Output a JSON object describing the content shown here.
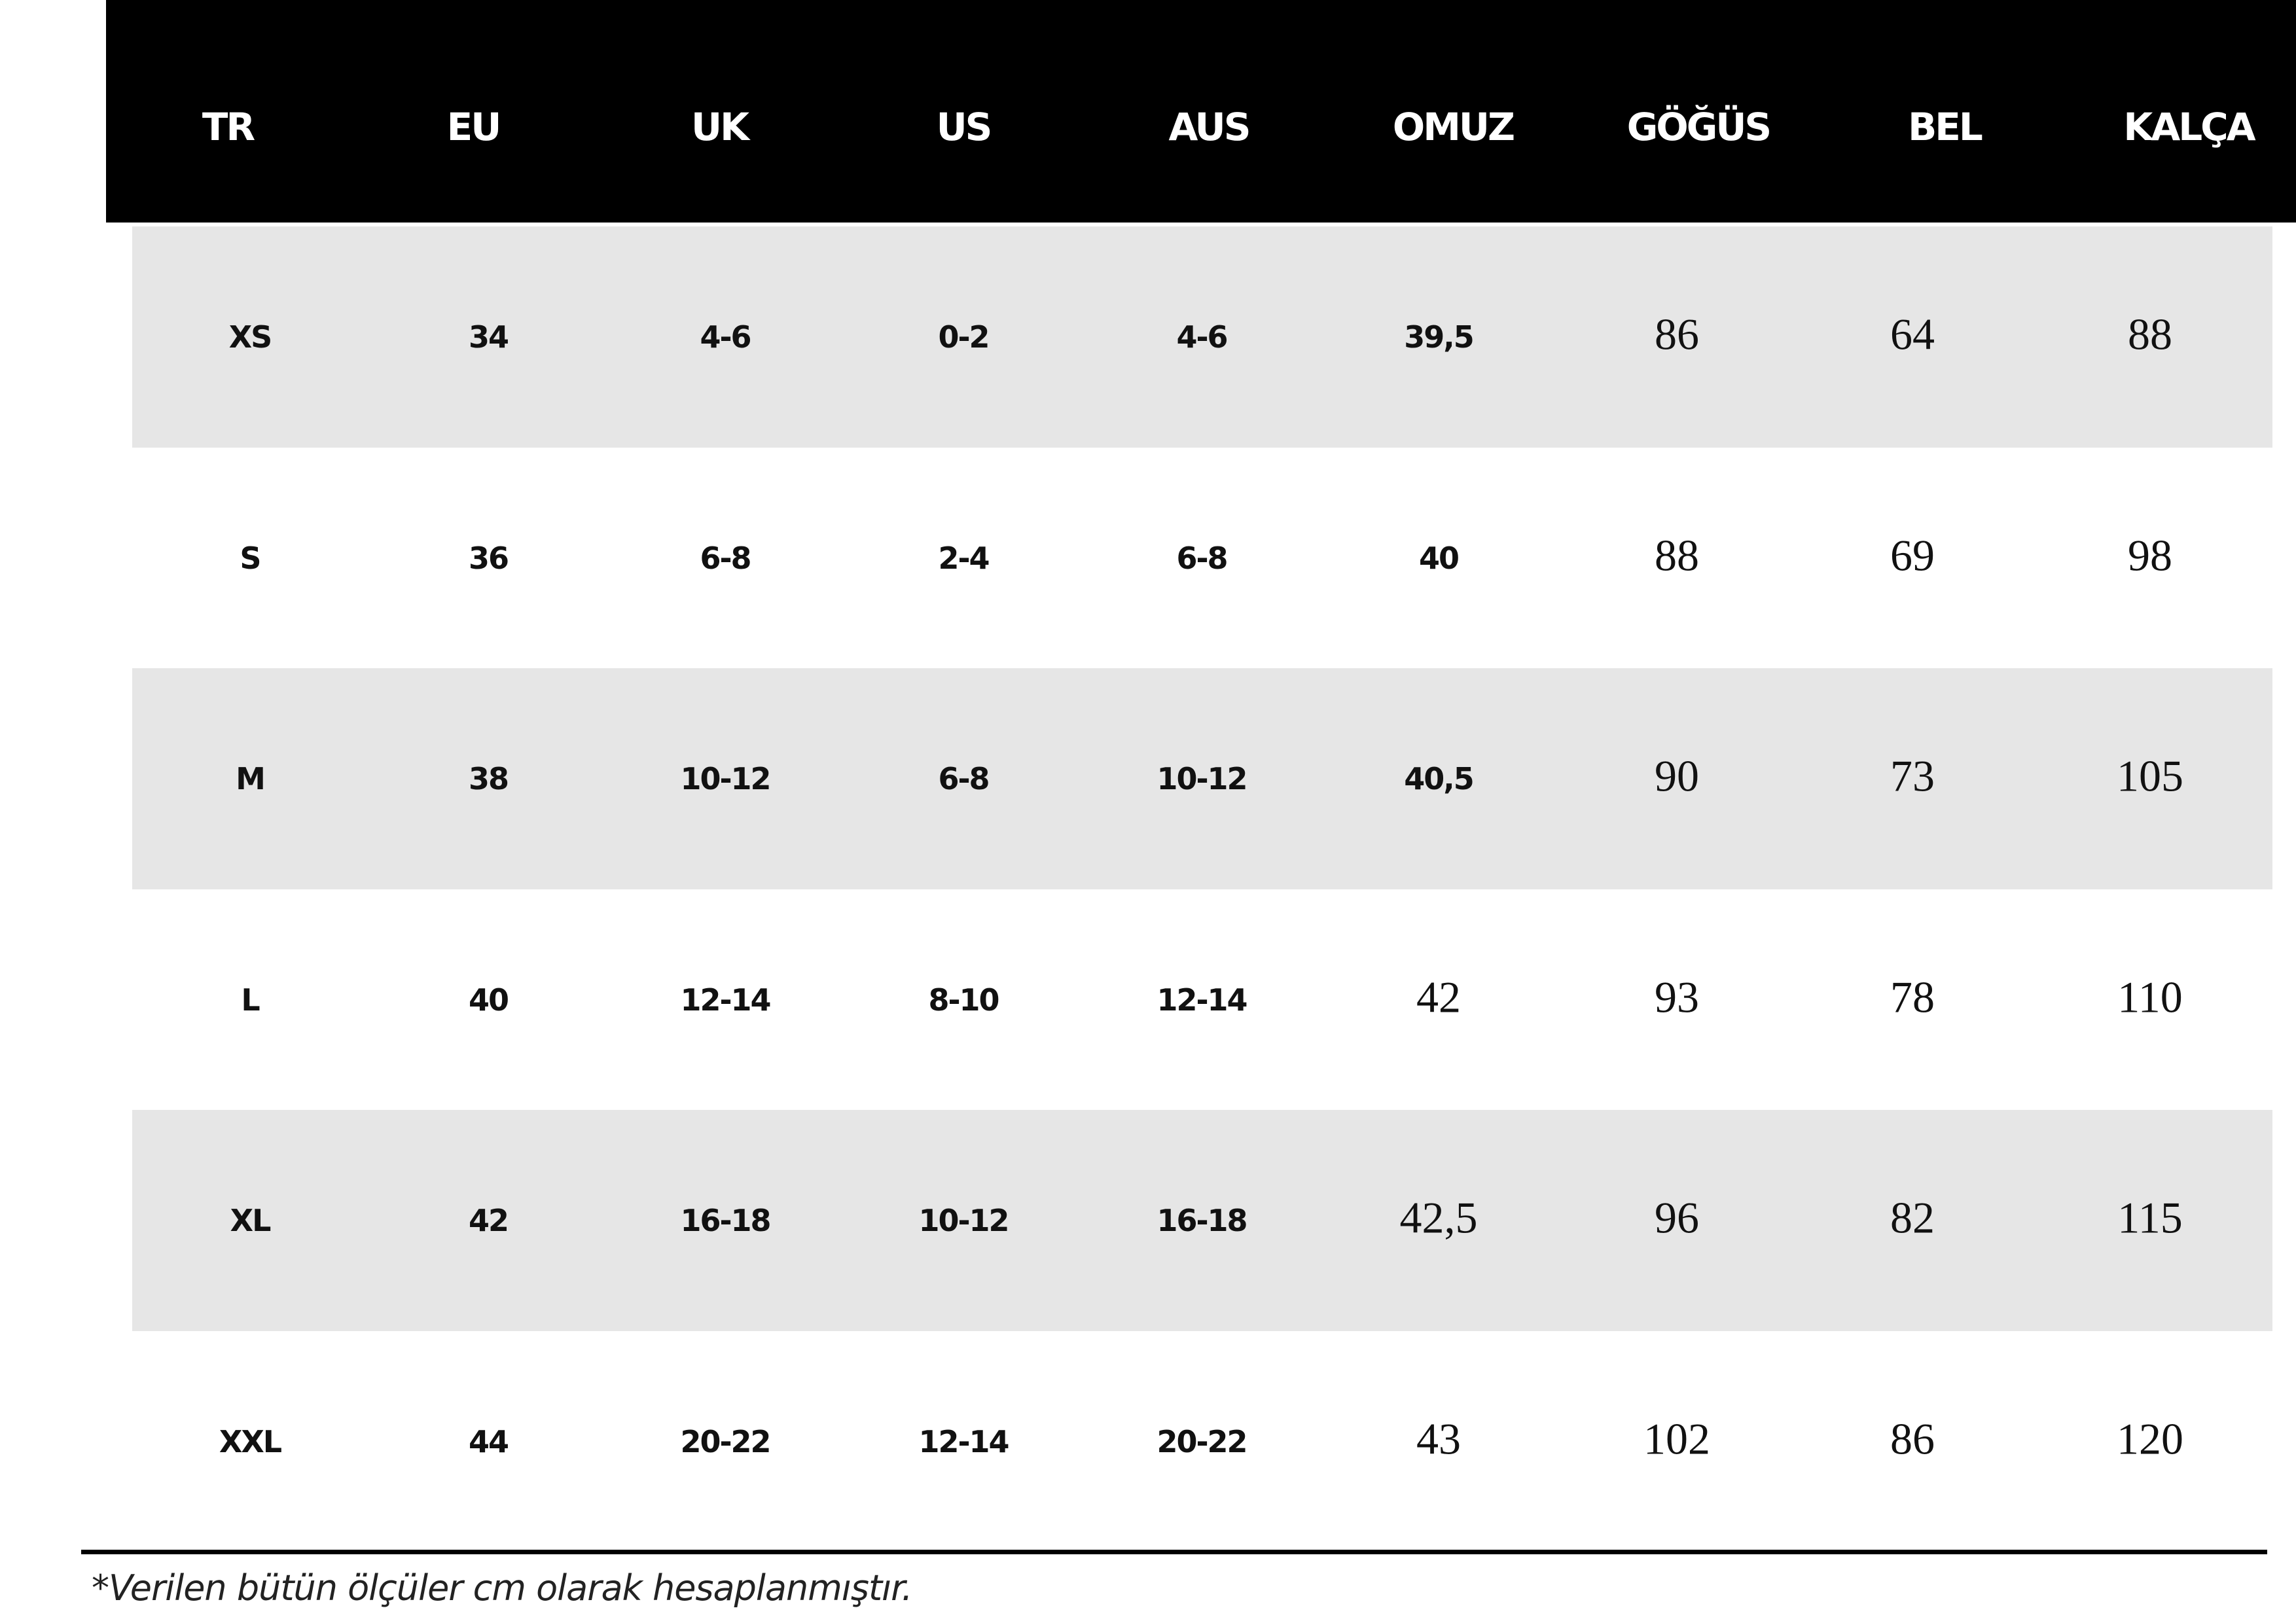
{
  "table": {
    "header": [
      "TR",
      "EU",
      "UK",
      "US",
      "AUS",
      "OMUZ",
      "GÖĞÜS",
      "BEL",
      "KALÇA"
    ],
    "rows": [
      [
        "XS",
        "34",
        "4-6",
        "0-2",
        "4-6",
        "39,5",
        "86",
        "64",
        "88"
      ],
      [
        "S",
        "36",
        "6-8",
        "2-4",
        "6-8",
        "40",
        "88",
        "69",
        "98"
      ],
      [
        "M",
        "38",
        "10-12",
        "6-8",
        "10-12",
        "40,5",
        "90",
        "73",
        "105"
      ],
      [
        "L",
        "40",
        "12-14",
        "8-10",
        "12-14",
        "42",
        "93",
        "78",
        "110"
      ],
      [
        "XL",
        "42",
        "16-18",
        "10-12",
        "16-18",
        "42,5",
        "96",
        "82",
        "115"
      ],
      [
        "XXL",
        "44",
        "20-22",
        "12-14",
        "20-22",
        "43",
        "102",
        "86",
        "120"
      ]
    ]
  },
  "footnote": "*Verilen bütün ölçüler cm olarak hesaplanmıştır."
}
